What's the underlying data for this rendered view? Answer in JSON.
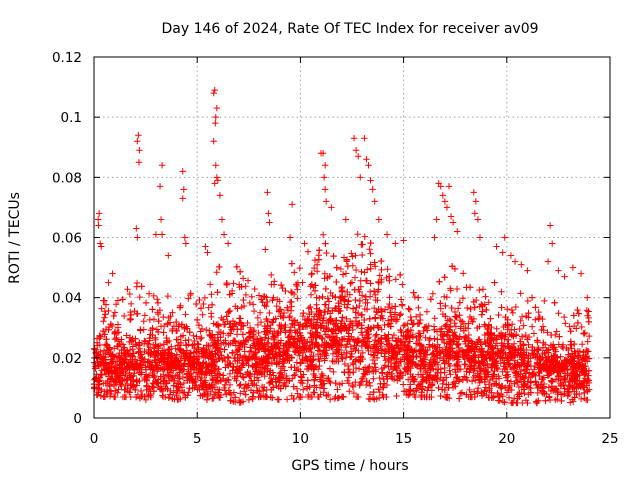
{
  "chart_data": {
    "type": "scatter",
    "title": "Day 146 of 2024, Rate Of TEC Index for receiver av09",
    "xlabel": "GPS time / hours",
    "ylabel": "ROTI / TECUs",
    "xlim": [
      0,
      25
    ],
    "ylim": [
      0,
      0.12
    ],
    "x_ticks": [
      0,
      5,
      10,
      15,
      20,
      25
    ],
    "x_tick_labels": [
      "0",
      "5",
      "10",
      "15",
      "20",
      "25"
    ],
    "y_ticks": [
      0,
      0.02,
      0.04,
      0.06,
      0.08,
      0.1,
      0.12
    ],
    "y_tick_labels": [
      "0",
      "0.02",
      "0.04",
      "0.06",
      "0.08",
      "0.1",
      "0.12"
    ],
    "grid": true,
    "marker": "+",
    "color": "#ff0000",
    "x_extent": [
      0,
      24
    ],
    "envelope": {
      "x": [
        0,
        0.5,
        1,
        1.5,
        2,
        2.5,
        3,
        3.5,
        4,
        4.5,
        5,
        5.5,
        6,
        6.5,
        7,
        7.5,
        8,
        8.5,
        9,
        9.5,
        10,
        10.5,
        11,
        11.5,
        12,
        12.5,
        13,
        13.5,
        14,
        14.5,
        15,
        15.5,
        16,
        16.5,
        17,
        17.5,
        18,
        18.5,
        19,
        19.5,
        20,
        20.5,
        21,
        21.5,
        22,
        22.5,
        23,
        23.5,
        24
      ],
      "low": [
        0.008,
        0.007,
        0.007,
        0.007,
        0.007,
        0.006,
        0.007,
        0.007,
        0.006,
        0.007,
        0.007,
        0.006,
        0.007,
        0.006,
        0.005,
        0.006,
        0.007,
        0.007,
        0.006,
        0.006,
        0.007,
        0.007,
        0.007,
        0.006,
        0.007,
        0.007,
        0.007,
        0.006,
        0.007,
        0.007,
        0.008,
        0.007,
        0.007,
        0.007,
        0.007,
        0.006,
        0.007,
        0.007,
        0.006,
        0.006,
        0.005,
        0.005,
        0.005,
        0.005,
        0.006,
        0.006,
        0.005,
        0.006,
        0.006
      ],
      "high": [
        0.032,
        0.04,
        0.038,
        0.042,
        0.046,
        0.043,
        0.04,
        0.044,
        0.038,
        0.048,
        0.04,
        0.044,
        0.05,
        0.055,
        0.05,
        0.046,
        0.042,
        0.048,
        0.05,
        0.052,
        0.055,
        0.058,
        0.062,
        0.06,
        0.058,
        0.06,
        0.062,
        0.058,
        0.055,
        0.05,
        0.048,
        0.042,
        0.04,
        0.042,
        0.05,
        0.052,
        0.048,
        0.046,
        0.044,
        0.046,
        0.042,
        0.044,
        0.04,
        0.042,
        0.038,
        0.04,
        0.036,
        0.036,
        0.038
      ],
      "median": [
        0.016,
        0.016,
        0.015,
        0.016,
        0.017,
        0.016,
        0.016,
        0.017,
        0.016,
        0.017,
        0.016,
        0.017,
        0.019,
        0.02,
        0.019,
        0.018,
        0.018,
        0.019,
        0.02,
        0.021,
        0.022,
        0.023,
        0.024,
        0.024,
        0.024,
        0.024,
        0.024,
        0.023,
        0.022,
        0.021,
        0.02,
        0.018,
        0.017,
        0.017,
        0.019,
        0.02,
        0.019,
        0.018,
        0.018,
        0.018,
        0.017,
        0.017,
        0.016,
        0.016,
        0.015,
        0.015,
        0.015,
        0.014,
        0.015
      ]
    },
    "points": [
      [
        0.2,
        0.066
      ],
      [
        0.25,
        0.068
      ],
      [
        0.3,
        0.058
      ],
      [
        0.22,
        0.064
      ],
      [
        0.35,
        0.057
      ],
      [
        0.9,
        0.048
      ],
      [
        0.7,
        0.045
      ],
      [
        2.1,
        0.092
      ],
      [
        2.15,
        0.094
      ],
      [
        2.2,
        0.089
      ],
      [
        2.18,
        0.085
      ],
      [
        2.05,
        0.063
      ],
      [
        2.1,
        0.06
      ],
      [
        3.0,
        0.061
      ],
      [
        3.3,
        0.084
      ],
      [
        3.2,
        0.077
      ],
      [
        3.25,
        0.066
      ],
      [
        3.3,
        0.061
      ],
      [
        3.6,
        0.054
      ],
      [
        4.3,
        0.082
      ],
      [
        4.35,
        0.076
      ],
      [
        4.3,
        0.073
      ],
      [
        4.4,
        0.06
      ],
      [
        4.45,
        0.058
      ],
      [
        5.4,
        0.057
      ],
      [
        5.5,
        0.055
      ],
      [
        5.8,
        0.108
      ],
      [
        5.85,
        0.109
      ],
      [
        5.9,
        0.1
      ],
      [
        5.95,
        0.103
      ],
      [
        5.88,
        0.098
      ],
      [
        5.8,
        0.092
      ],
      [
        5.9,
        0.084
      ],
      [
        5.95,
        0.08
      ],
      [
        6.0,
        0.079
      ],
      [
        5.85,
        0.078
      ],
      [
        6.1,
        0.074
      ],
      [
        6.2,
        0.066
      ],
      [
        6.3,
        0.061
      ],
      [
        6.5,
        0.058
      ],
      [
        8.4,
        0.075
      ],
      [
        8.45,
        0.068
      ],
      [
        8.5,
        0.065
      ],
      [
        8.3,
        0.056
      ],
      [
        9.6,
        0.071
      ],
      [
        9.5,
        0.06
      ],
      [
        10.2,
        0.058
      ],
      [
        11.0,
        0.088
      ],
      [
        11.1,
        0.088
      ],
      [
        11.2,
        0.084
      ],
      [
        11.15,
        0.08
      ],
      [
        11.2,
        0.076
      ],
      [
        11.25,
        0.072
      ],
      [
        11.5,
        0.07
      ],
      [
        12.2,
        0.066
      ],
      [
        12.6,
        0.093
      ],
      [
        12.7,
        0.089
      ],
      [
        12.8,
        0.087
      ],
      [
        12.9,
        0.08
      ],
      [
        13.1,
        0.093
      ],
      [
        13.2,
        0.086
      ],
      [
        13.3,
        0.084
      ],
      [
        13.4,
        0.079
      ],
      [
        13.5,
        0.076
      ],
      [
        13.6,
        0.072
      ],
      [
        13.8,
        0.066
      ],
      [
        14.2,
        0.061
      ],
      [
        14.6,
        0.058
      ],
      [
        15.0,
        0.059
      ],
      [
        16.7,
        0.078
      ],
      [
        16.8,
        0.077
      ],
      [
        16.9,
        0.074
      ],
      [
        17.0,
        0.072
      ],
      [
        17.2,
        0.077
      ],
      [
        17.1,
        0.07
      ],
      [
        17.3,
        0.067
      ],
      [
        17.4,
        0.065
      ],
      [
        16.6,
        0.066
      ],
      [
        16.5,
        0.06
      ],
      [
        17.6,
        0.062
      ],
      [
        18.4,
        0.075
      ],
      [
        18.5,
        0.072
      ],
      [
        18.45,
        0.068
      ],
      [
        18.6,
        0.066
      ],
      [
        18.7,
        0.06
      ],
      [
        19.5,
        0.057
      ],
      [
        19.8,
        0.055
      ],
      [
        19.9,
        0.06
      ],
      [
        20.2,
        0.054
      ],
      [
        20.4,
        0.052
      ],
      [
        20.7,
        0.051
      ],
      [
        21.0,
        0.049
      ],
      [
        22.1,
        0.064
      ],
      [
        22.2,
        0.058
      ],
      [
        22.0,
        0.052
      ],
      [
        22.5,
        0.049
      ],
      [
        22.8,
        0.047
      ],
      [
        23.2,
        0.05
      ],
      [
        23.6,
        0.048
      ],
      [
        23.9,
        0.04
      ]
    ]
  }
}
